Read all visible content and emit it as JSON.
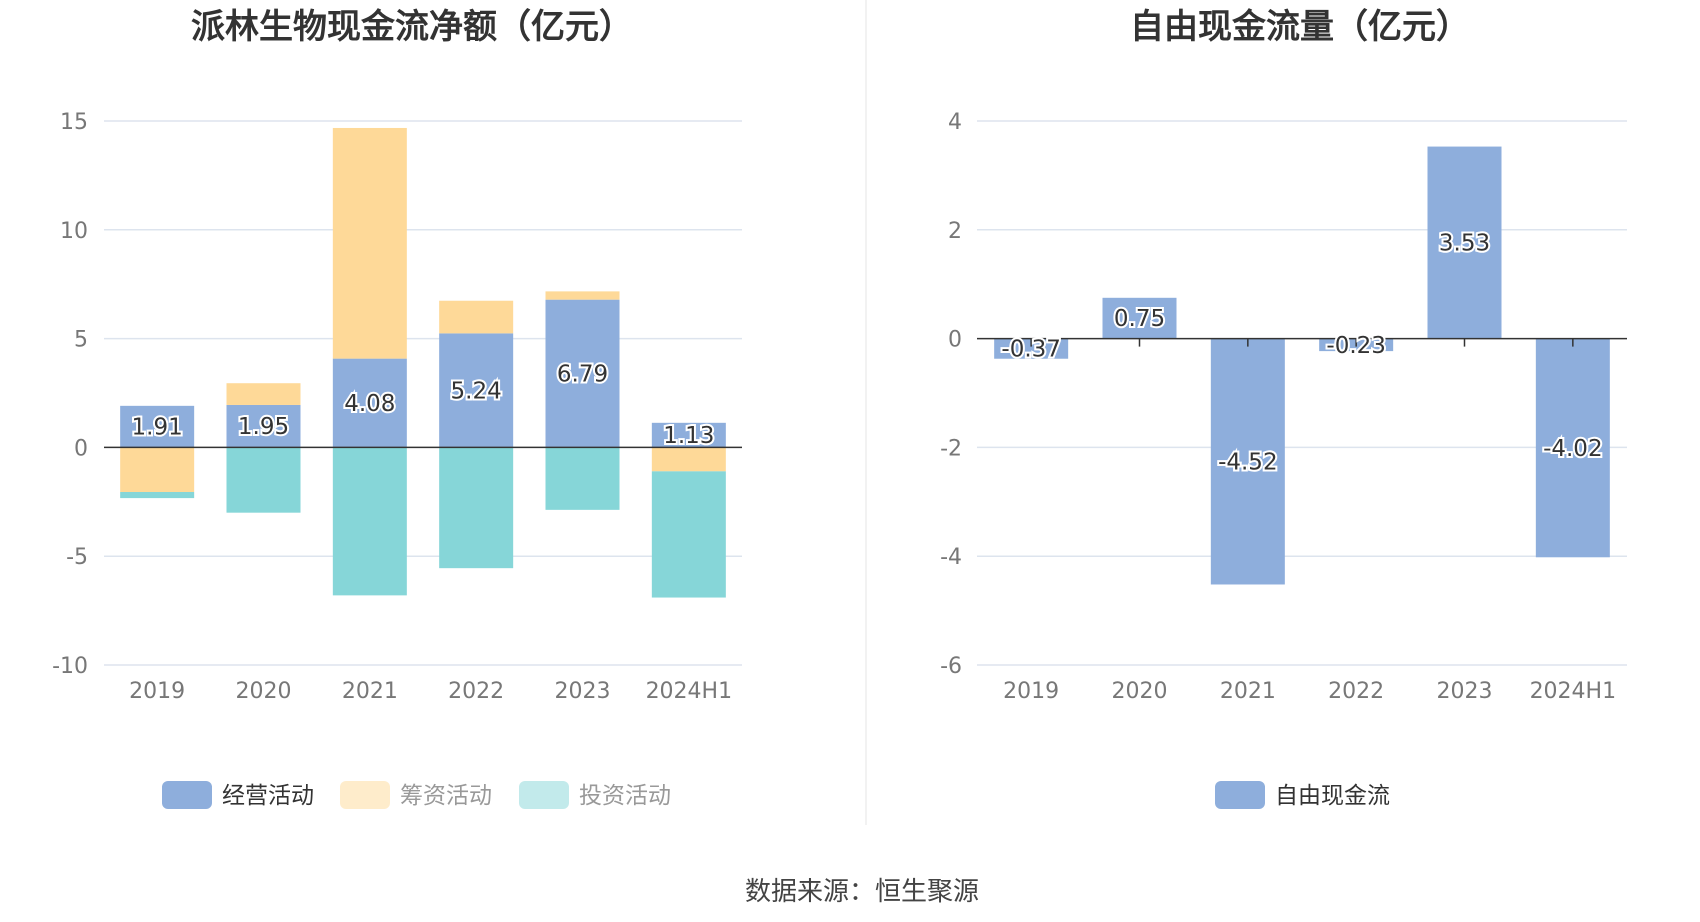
{
  "chart_data": [
    {
      "type": "bar",
      "stacked": true,
      "title": "派林生物现金流净额（亿元）",
      "categories": [
        "2019",
        "2020",
        "2021",
        "2022",
        "2023",
        "2024H1"
      ],
      "ylim": [
        -10,
        15
      ],
      "yticks": [
        15,
        10,
        5,
        0,
        -5,
        -10
      ],
      "grid": true,
      "legend_position": "bottom",
      "series": [
        {
          "name": "经营活动",
          "color": "#8eaedc",
          "values": [
            1.91,
            1.95,
            4.08,
            5.24,
            6.79,
            1.13
          ],
          "labels": [
            "1.91",
            "1.95",
            "4.08",
            "5.24",
            "6.79",
            "1.13"
          ]
        },
        {
          "name": "筹资活动",
          "color": "#fed998",
          "values": [
            -2.05,
            1.0,
            10.6,
            1.5,
            0.38,
            -1.1
          ]
        },
        {
          "name": "投资活动",
          "color": "#86d6d8",
          "values": [
            -0.28,
            -3.0,
            -6.8,
            -5.55,
            -2.87,
            -5.8
          ]
        }
      ]
    },
    {
      "type": "bar",
      "title": "自由现金流量（亿元）",
      "categories": [
        "2019",
        "2020",
        "2021",
        "2022",
        "2023",
        "2024H1"
      ],
      "ylim": [
        -6,
        4
      ],
      "yticks": [
        4,
        2,
        0,
        -2,
        -4,
        -6
      ],
      "grid": true,
      "legend_position": "bottom",
      "series": [
        {
          "name": "自由现金流",
          "color": "#8eaedc",
          "values": [
            -0.37,
            0.75,
            -4.52,
            -0.23,
            3.53,
            -4.02
          ],
          "labels": [
            "-0.37",
            "0.75",
            "-4.52",
            "-0.23",
            "3.53",
            "-4.02"
          ]
        }
      ]
    }
  ],
  "source": "数据来源：恒生聚源",
  "colors": {
    "grid": "#dde4ee",
    "axis": "#333333",
    "tick_text": "#777777",
    "title": "#333333",
    "divider": "#eeeeee",
    "legend_active": "#333333",
    "legend_inactive": "#999999"
  },
  "legend_faded": [
    "筹资活动",
    "投资活动"
  ]
}
